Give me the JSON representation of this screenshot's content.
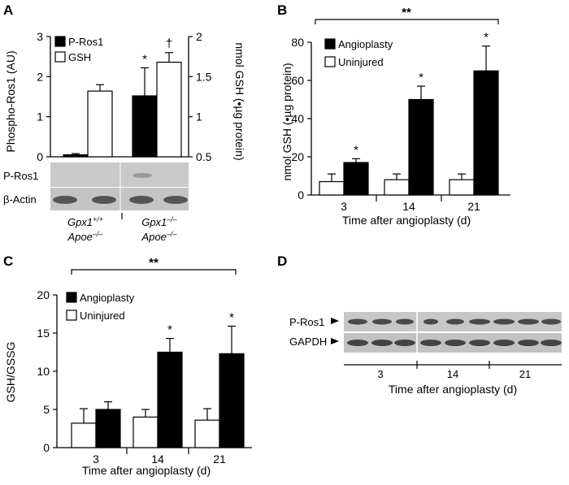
{
  "panels": {
    "A": {
      "letter": "A",
      "left_axis": {
        "label": "Phospho-Ros1 (AU)",
        "ticks": [
          "0",
          "1",
          "2",
          "3"
        ]
      },
      "right_axis": {
        "label": "nmol GSH (•µg protein)",
        "ticks": [
          "0.5",
          "1",
          "1.5",
          "2"
        ]
      },
      "legend": [
        "P-Ros1",
        "GSH"
      ],
      "marks": [
        "*",
        "†"
      ],
      "blot_labels": [
        "P-Ros1",
        "β-Actin"
      ],
      "genotypes": [
        {
          "gpx": "Gpx1",
          "gpx_sup": "+/+",
          "apoe": "Apoe",
          "apoe_sup": "–/–"
        },
        {
          "gpx": "Gpx1",
          "gpx_sup": "–/–",
          "apoe": "Apoe",
          "apoe_sup": "–/–"
        }
      ]
    },
    "B": {
      "letter": "B",
      "ylabel": "nmol GSH (•µg protein)",
      "xlabel": "Time after angioplasty (d)",
      "yticks": [
        "0",
        "20",
        "40",
        "60",
        "80"
      ],
      "categories": [
        "3",
        "14",
        "21"
      ],
      "legend": [
        "Angioplasty",
        "Uninjured"
      ],
      "sig_bracket": "**",
      "star": "*"
    },
    "C": {
      "letter": "C",
      "ylabel": "GSH/GSSG",
      "xlabel": "Time after angioplasty (d)",
      "yticks": [
        "0",
        "5",
        "10",
        "15",
        "20"
      ],
      "categories": [
        "3",
        "14",
        "21"
      ],
      "legend": [
        "Angioplasty",
        "Uninjured"
      ],
      "sig_bracket": "**",
      "star": "*"
    },
    "D": {
      "letter": "D",
      "blot_labels": [
        "P-Ros1",
        "GAPDH"
      ],
      "categories": [
        "3",
        "14",
        "21"
      ],
      "xlabel": "Time after angioplasty (d)"
    }
  },
  "chart_data": [
    {
      "panel": "A",
      "type": "bar",
      "categories": [
        "Gpx1+/+ Apoe–/–",
        "Gpx1–/– Apoe–/–"
      ],
      "series": [
        {
          "name": "P-Ros1",
          "axis": "left",
          "values": [
            0.05,
            1.52
          ],
          "errors": [
            0.03,
            0.7
          ],
          "color": "#000000"
        },
        {
          "name": "GSH",
          "axis": "right",
          "values": [
            1.32,
            1.68
          ],
          "errors": [
            0.08,
            0.12
          ],
          "color": "#ffffff"
        }
      ],
      "ylim_left": [
        0,
        3
      ],
      "ylim_right": [
        0.5,
        2
      ],
      "legend_position": "top-left",
      "annotations": [
        {
          "category": 1,
          "series": "P-Ros1",
          "text": "*"
        },
        {
          "category": 1,
          "series": "GSH",
          "text": "†"
        }
      ]
    },
    {
      "panel": "B",
      "type": "bar",
      "ylabel": "nmol GSH (•µg protein)",
      "xlabel": "Time after angioplasty (d)",
      "categories": [
        "3",
        "14",
        "21"
      ],
      "series": [
        {
          "name": "Uninjured",
          "values": [
            7,
            8,
            8
          ],
          "errors": [
            4,
            3,
            3
          ],
          "color": "#ffffff"
        },
        {
          "name": "Angioplasty",
          "values": [
            17,
            50,
            65
          ],
          "errors": [
            2,
            7,
            13
          ],
          "color": "#000000"
        }
      ],
      "ylim": [
        0,
        80
      ],
      "legend_position": "top-left",
      "annotations": [
        {
          "category": 0,
          "series": "Angioplasty",
          "text": "*"
        },
        {
          "category": 1,
          "series": "Angioplasty",
          "text": "*"
        },
        {
          "category": 2,
          "series": "Angioplasty",
          "text": "*"
        }
      ]
    },
    {
      "panel": "C",
      "type": "bar",
      "ylabel": "GSH/GSSG",
      "xlabel": "Time after angioplasty (d)",
      "categories": [
        "3",
        "14",
        "21"
      ],
      "series": [
        {
          "name": "Uninjured",
          "values": [
            3.2,
            4.0,
            3.6
          ],
          "errors": [
            1.9,
            1.0,
            1.5
          ],
          "color": "#ffffff"
        },
        {
          "name": "Angioplasty",
          "values": [
            5.0,
            12.5,
            12.3
          ],
          "errors": [
            1.0,
            1.8,
            3.6
          ],
          "color": "#000000"
        }
      ],
      "ylim": [
        0,
        20
      ],
      "legend_position": "top-left",
      "annotations": [
        {
          "category": 1,
          "series": "Angioplasty",
          "text": "*"
        },
        {
          "category": 2,
          "series": "Angioplasty",
          "text": "*"
        }
      ]
    }
  ]
}
